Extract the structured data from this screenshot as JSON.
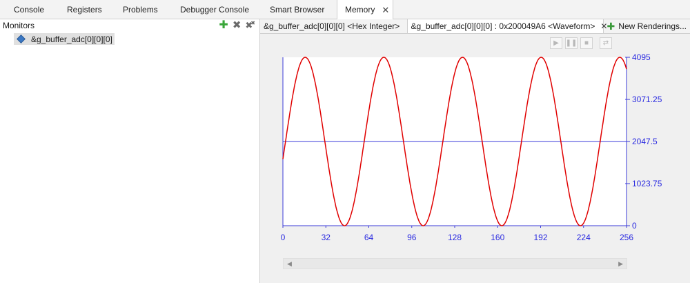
{
  "tabs": [
    {
      "label": "Console",
      "active": false
    },
    {
      "label": "Registers",
      "active": false
    },
    {
      "label": "Problems",
      "active": false
    },
    {
      "label": "Debugger Console",
      "active": false
    },
    {
      "label": "Smart Browser",
      "active": false
    },
    {
      "label": "Memory",
      "active": true
    }
  ],
  "monitors": {
    "title": "Monitors",
    "tool_icons": [
      "add-icon",
      "remove-icon",
      "remove-all-icon"
    ],
    "items": [
      {
        "label": "&g_buffer_adc[0][0][0]"
      }
    ]
  },
  "renderings": {
    "tabs": [
      {
        "label": "&g_buffer_adc[0][0][0] <Hex Integer>",
        "active": false
      },
      {
        "label": "&g_buffer_adc[0][0][0] : 0x200049A6 <Waveform>",
        "active": true
      },
      {
        "label": "New Renderings...",
        "active": false
      }
    ],
    "controls": [
      "play-icon",
      "pause-icon",
      "stop-icon",
      "refresh-icon"
    ]
  },
  "colors": {
    "waveform": "#e00000",
    "axis": "#3a3ad8",
    "tick_label": "#2a2ae0"
  },
  "chart_data": {
    "type": "line",
    "title": "",
    "xlabel": "",
    "ylabel": "",
    "xlim": [
      0,
      256
    ],
    "ylim": [
      0,
      4095
    ],
    "x_ticks": [
      "0",
      "32",
      "64",
      "96",
      "128",
      "160",
      "192",
      "224",
      "256"
    ],
    "y_ticks": [
      "4095",
      "3071.25",
      "2047.5",
      "1023.75",
      "0"
    ],
    "reference_line": 2047.5,
    "grid": false,
    "series": [
      {
        "period_samples": 58.6,
        "amplitude": 2047.5,
        "offset": 2047.5,
        "phase_deg": -12,
        "x_peaks": [
          17,
          76,
          135,
          193,
          252
        ],
        "x_troughs": [
          47,
          105,
          164,
          223
        ]
      }
    ]
  }
}
